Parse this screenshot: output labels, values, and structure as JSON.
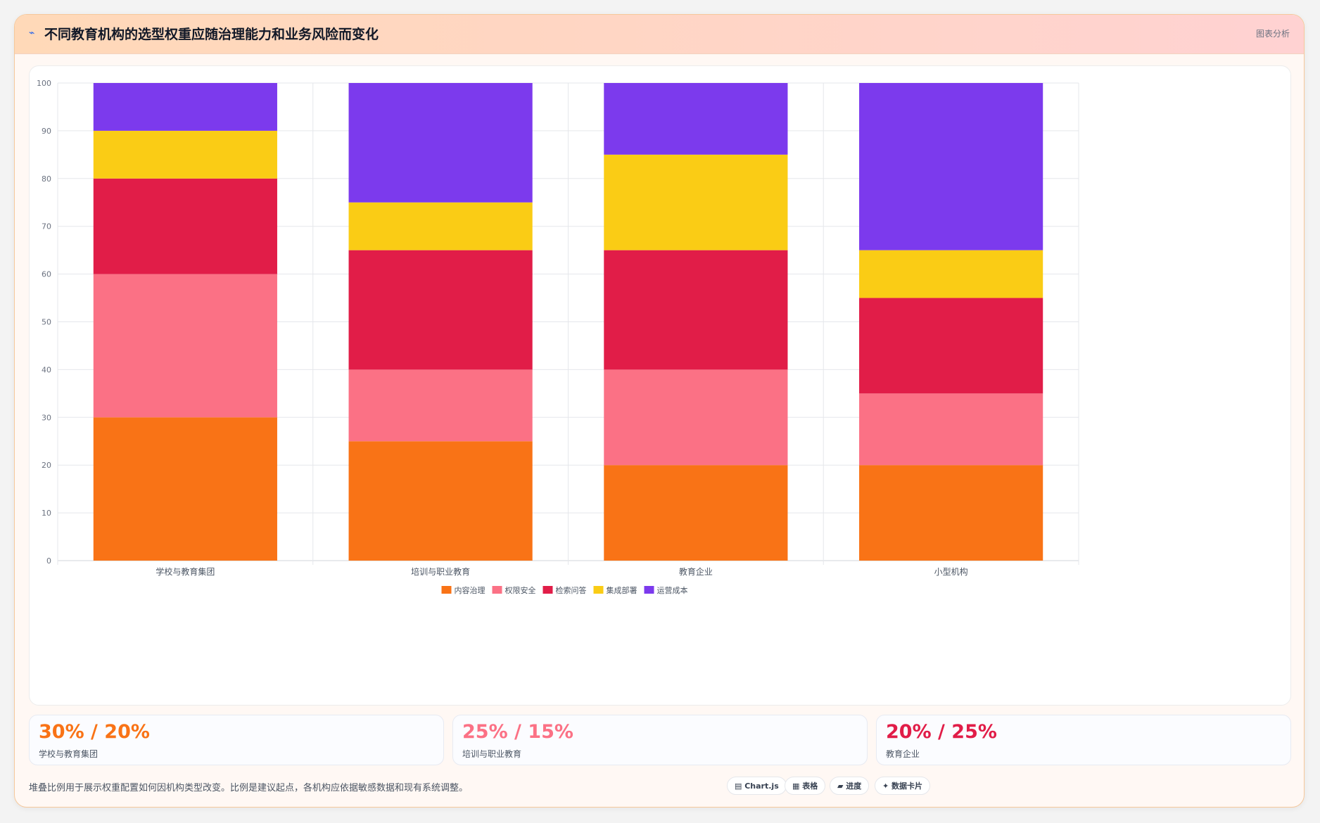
{
  "header": {
    "title": "不同教育机构的选型权重应随治理能力和业务风险而变化",
    "icon": "wave-icon",
    "link_label": "图表分析"
  },
  "chart_data": {
    "type": "bar",
    "stacked": true,
    "categories": [
      "学校与教育集团",
      "培训与职业教育",
      "教育企业",
      "小型机构"
    ],
    "series": [
      {
        "name": "内容治理",
        "color": "#f97316",
        "values": [
          30,
          25,
          20,
          20
        ]
      },
      {
        "name": "权限安全",
        "color": "#fb7185",
        "values": [
          30,
          15,
          20,
          15
        ]
      },
      {
        "name": "检索问答",
        "color": "#e11d48",
        "values": [
          20,
          25,
          25,
          20
        ]
      },
      {
        "name": "集成部署",
        "color": "#facc15",
        "values": [
          10,
          10,
          20,
          10
        ]
      },
      {
        "name": "运营成本",
        "color": "#7c3aed",
        "values": [
          10,
          25,
          15,
          35
        ]
      }
    ],
    "ylim": [
      0,
      100
    ],
    "yticks": [
      "0",
      "10",
      "20",
      "30",
      "40",
      "50",
      "60",
      "70",
      "80",
      "90",
      "100"
    ],
    "grid": true,
    "legend_position": "bottom"
  },
  "stats": [
    {
      "value": "30% / 20%",
      "label": "学校与教育集团",
      "color": "#f97316"
    },
    {
      "value": "25% / 15%",
      "label": "培训与职业教育",
      "color": "#fb7185"
    },
    {
      "value": "20% / 25%",
      "label": "教育企业",
      "color": "#e11d48"
    }
  ],
  "footer": {
    "note": "堆叠比例用于展示权重配置如何因机构类型改变。比例是建议起点，各机构应依据敏感数据和现有系统调整。",
    "tags": [
      "Chart.js",
      "表格",
      "进度",
      "数据卡片"
    ],
    "tag_icons": [
      "chart-icon",
      "table-icon",
      "progress-icon",
      "sparkle-icon"
    ]
  }
}
